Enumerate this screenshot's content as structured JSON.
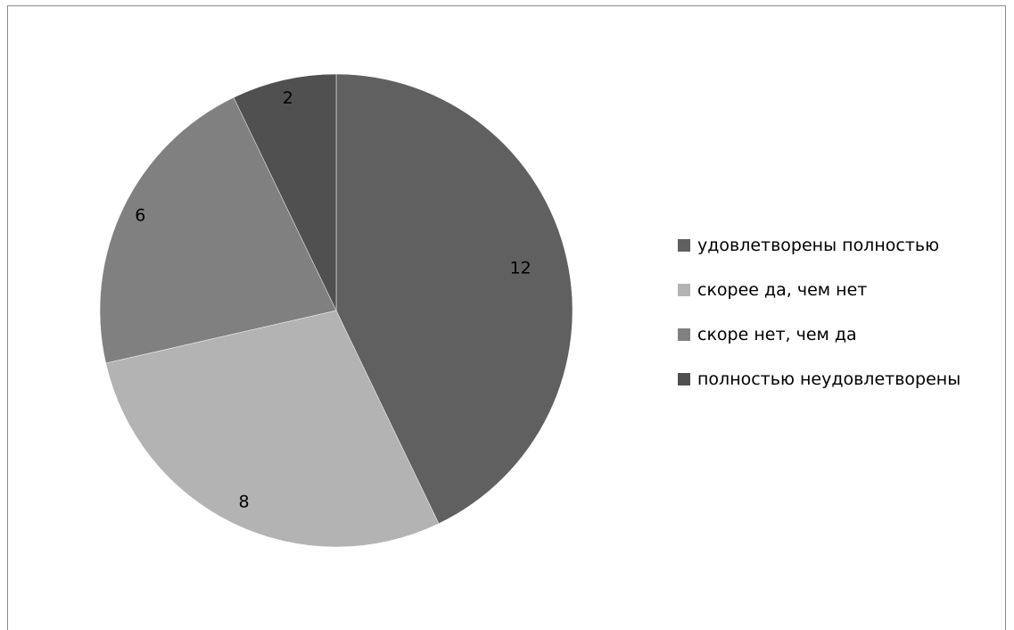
{
  "chart_data": {
    "type": "pie",
    "title": "",
    "categories": [
      "удовлетворены полностью",
      "скорее да, чем нет",
      "скоре нет, чем да",
      "полностью неудовлетворены"
    ],
    "values": [
      12,
      8,
      6,
      2
    ],
    "slice_colors": [
      "#606060",
      "#b3b3b3",
      "#808080",
      "#505050"
    ],
    "data_labels": [
      "12",
      "8",
      "6",
      "2"
    ],
    "legend_position": "right",
    "start_angle": "12 o'clock",
    "direction": "clockwise"
  }
}
